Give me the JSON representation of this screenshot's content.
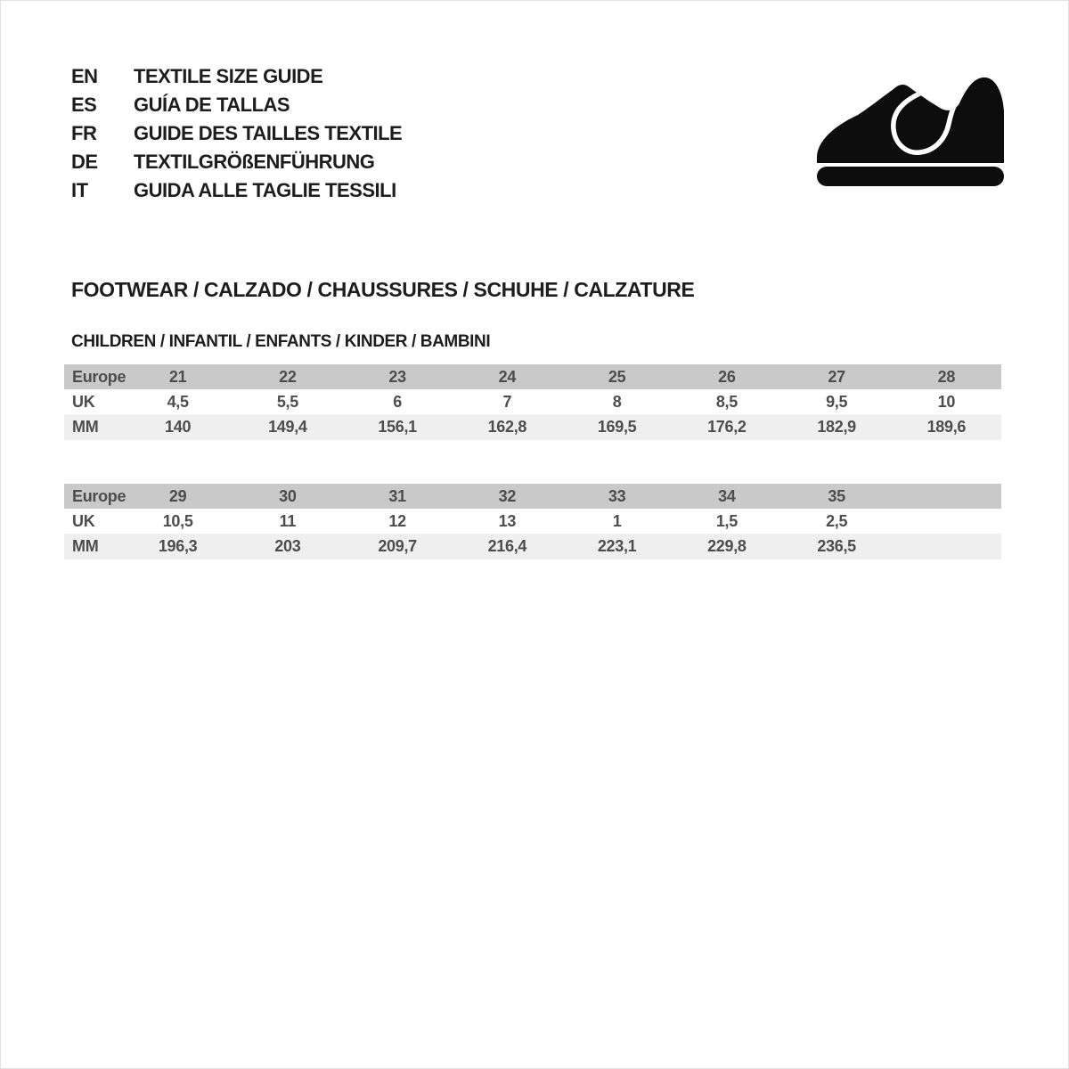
{
  "languages": [
    {
      "code": "EN",
      "title": "TEXTILE SIZE GUIDE"
    },
    {
      "code": "ES",
      "title": "GUÍA DE TALLAS"
    },
    {
      "code": "FR",
      "title": "GUIDE DES TAILLES TEXTILE"
    },
    {
      "code": "DE",
      "title": "TEXTILGRÖßENFÜHRUNG"
    },
    {
      "code": "IT",
      "title": "GUIDA ALLE TAGLIE TESSILI"
    }
  ],
  "icon": {
    "name": "children-shoe-icon",
    "color": "#0d0d0d"
  },
  "section_title": "FOOTWEAR / CALZADO / CHAUSSURES / SCHUHE / CALZATURE",
  "subsection_title": "CHILDREN / INFANTIL / ENFANTS / KINDER / BAMBINI",
  "tables": [
    {
      "rows": [
        {
          "label": "Europe",
          "values": [
            "21",
            "22",
            "23",
            "24",
            "25",
            "26",
            "27",
            "28"
          ]
        },
        {
          "label": "UK",
          "values": [
            "4,5",
            "5,5",
            "6",
            "7",
            "8",
            "8,5",
            "9,5",
            "10"
          ]
        },
        {
          "label": "MM",
          "values": [
            "140",
            "149,4",
            "156,1",
            "162,8",
            "169,5",
            "176,2",
            "182,9",
            "189,6"
          ]
        }
      ]
    },
    {
      "rows": [
        {
          "label": "Europe",
          "values": [
            "29",
            "30",
            "31",
            "32",
            "33",
            "34",
            "35",
            ""
          ]
        },
        {
          "label": "UK",
          "values": [
            "10,5",
            "11",
            "12",
            "13",
            "1",
            "1,5",
            "2,5",
            ""
          ]
        },
        {
          "label": "MM",
          "values": [
            "196,3",
            "203",
            "209,7",
            "216,4",
            "223,1",
            "229,8",
            "236,5",
            ""
          ]
        }
      ]
    }
  ],
  "colors": {
    "header_band": "#c9c9c9",
    "mm_band": "#efefef",
    "table_text": "#4d4d4d",
    "heading_text": "#1d1d1d",
    "icon_black": "#0d0d0d"
  }
}
